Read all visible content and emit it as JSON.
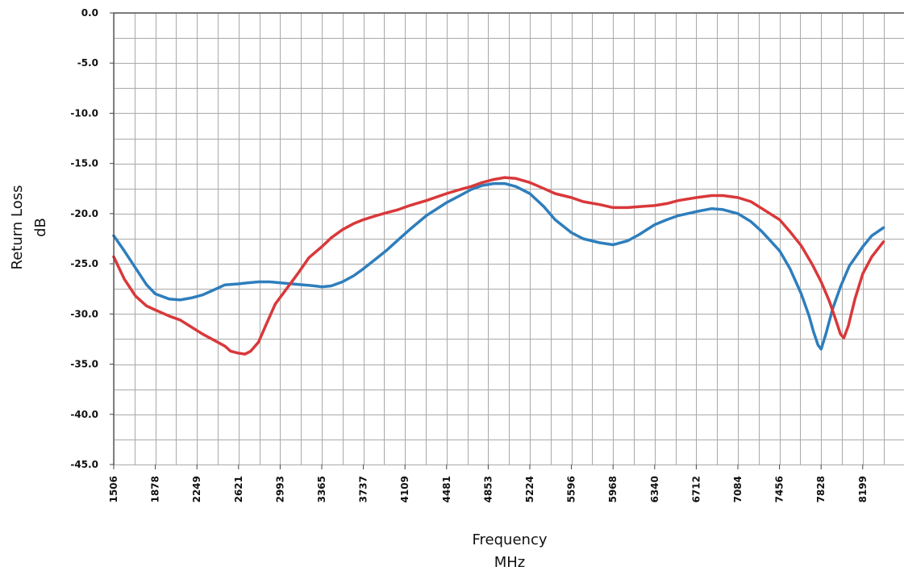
{
  "chart_data": {
    "type": "line",
    "title": "",
    "xlabel": "Frequency",
    "xlabel_unit": "MHz",
    "ylabel": "Return Loss",
    "ylabel_unit": "dB",
    "xlim": [
      1506,
      8385
    ],
    "ylim": [
      -45,
      0
    ],
    "x_ticks": [
      "1506",
      "1878",
      "2249",
      "2621",
      "2993",
      "3365",
      "3737",
      "4109",
      "4481",
      "4853",
      "5224",
      "5596",
      "5968",
      "6340",
      "6712",
      "7084",
      "7456",
      "7828",
      "8199"
    ],
    "y_ticks": [
      "0.0",
      "-5.0",
      "-10.0",
      "-15.0",
      "-20.0",
      "-25.0",
      "-30.0",
      "-35.0",
      "-40.0",
      "-45.0"
    ],
    "grid": true,
    "legend": "none",
    "series": [
      {
        "color": "#2e7ebc",
        "x": [
          1506,
          1600,
          1700,
          1800,
          1878,
          2000,
          2100,
          2200,
          2300,
          2400,
          2500,
          2621,
          2700,
          2800,
          2900,
          3000,
          3100,
          3200,
          3300,
          3365,
          3450,
          3550,
          3650,
          3737,
          3850,
          3950,
          4050,
          4150,
          4300,
          4481,
          4600,
          4700,
          4800,
          4900,
          5000,
          5100,
          5224,
          5350,
          5450,
          5596,
          5700,
          5850,
          5968,
          6100,
          6200,
          6340,
          6450,
          6550,
          6712,
          6850,
          6950,
          7084,
          7200,
          7300,
          7456,
          7550,
          7650,
          7720,
          7760,
          7800,
          7828,
          7870,
          7930,
          8000,
          8080,
          8150,
          8199,
          8280,
          8385
        ],
        "values": [
          -22.2,
          -23.7,
          -25.4,
          -27.1,
          -28.0,
          -28.5,
          -28.6,
          -28.4,
          -28.1,
          -27.6,
          -27.1,
          -27.0,
          -26.9,
          -26.8,
          -26.8,
          -26.9,
          -27.0,
          -27.1,
          -27.2,
          -27.3,
          -27.2,
          -26.8,
          -26.2,
          -25.5,
          -24.5,
          -23.6,
          -22.6,
          -21.6,
          -20.2,
          -18.9,
          -18.2,
          -17.6,
          -17.2,
          -17.0,
          -17.0,
          -17.3,
          -18.0,
          -19.3,
          -20.6,
          -21.9,
          -22.5,
          -22.9,
          -23.1,
          -22.7,
          -22.1,
          -21.1,
          -20.6,
          -20.2,
          -19.8,
          -19.5,
          -19.6,
          -20.0,
          -20.8,
          -21.8,
          -23.7,
          -25.5,
          -28.0,
          -30.2,
          -31.8,
          -33.1,
          -33.5,
          -32.0,
          -29.5,
          -27.3,
          -25.2,
          -24.1,
          -23.3,
          -22.2,
          -21.4
        ]
      },
      {
        "color": "#d9383a",
        "x": [
          1506,
          1600,
          1700,
          1800,
          1878,
          2000,
          2100,
          2200,
          2300,
          2400,
          2500,
          2550,
          2621,
          2680,
          2730,
          2800,
          2870,
          2950,
          3050,
          3150,
          3250,
          3365,
          3450,
          3550,
          3650,
          3737,
          3850,
          3950,
          4050,
          4150,
          4300,
          4481,
          4600,
          4700,
          4800,
          4900,
          5000,
          5100,
          5224,
          5350,
          5450,
          5596,
          5700,
          5850,
          5968,
          6100,
          6200,
          6340,
          6450,
          6550,
          6712,
          6850,
          6950,
          7084,
          7200,
          7300,
          7456,
          7550,
          7650,
          7750,
          7828,
          7900,
          7950,
          8000,
          8030,
          8070,
          8130,
          8199,
          8280,
          8385
        ],
        "values": [
          -24.3,
          -26.5,
          -28.2,
          -29.2,
          -29.6,
          -30.2,
          -30.6,
          -31.3,
          -32.0,
          -32.6,
          -33.2,
          -33.7,
          -33.9,
          -34.0,
          -33.7,
          -32.8,
          -31.0,
          -29.0,
          -27.5,
          -26.0,
          -24.4,
          -23.3,
          -22.4,
          -21.6,
          -21.0,
          -20.6,
          -20.2,
          -19.9,
          -19.6,
          -19.2,
          -18.7,
          -18.0,
          -17.6,
          -17.3,
          -16.9,
          -16.6,
          -16.4,
          -16.5,
          -16.9,
          -17.5,
          -18.0,
          -18.4,
          -18.8,
          -19.1,
          -19.4,
          -19.4,
          -19.3,
          -19.2,
          -19.0,
          -18.7,
          -18.4,
          -18.2,
          -18.2,
          -18.4,
          -18.8,
          -19.5,
          -20.6,
          -21.8,
          -23.2,
          -25.1,
          -26.8,
          -28.7,
          -30.3,
          -32.0,
          -32.4,
          -31.2,
          -28.5,
          -26.0,
          -24.3,
          -22.8
        ]
      }
    ]
  }
}
